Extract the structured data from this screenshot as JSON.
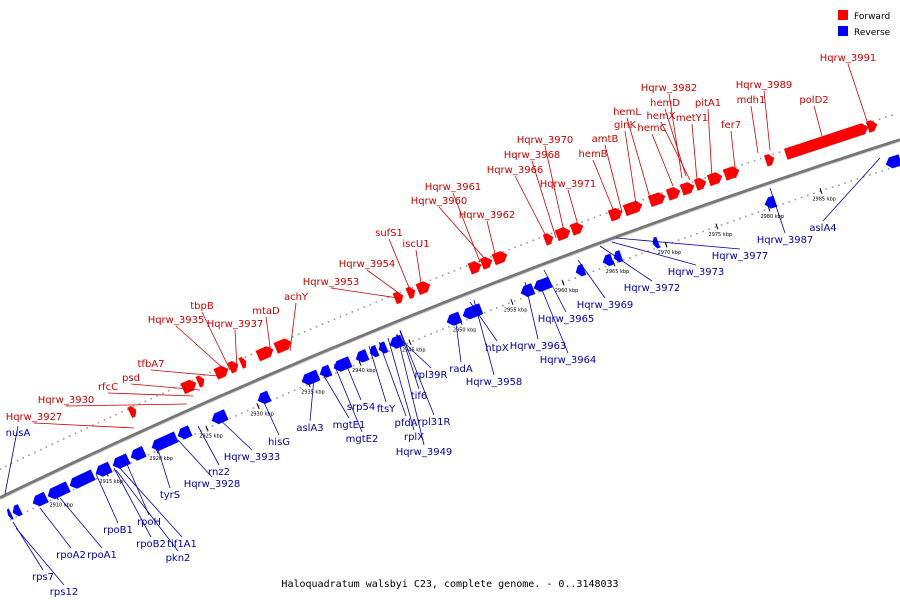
{
  "caption": "Haloquadratum walsbyi C23, complete genome. - 0..3148033",
  "legend": [
    {
      "label": "Forward",
      "color": "#ff0000"
    },
    {
      "label": "Reverse",
      "color": "#0000ff"
    }
  ],
  "colors": {
    "forward": "#ff0000",
    "reverse": "#0000ff",
    "forward_label": "#cc0000",
    "reverse_label": "#0000aa",
    "backbone": "#777777"
  },
  "kbp_ticks": [
    "2910 kbp",
    "2915 kbp",
    "2920 kbp",
    "2925 kbp",
    "2930 kbp",
    "2935 kbp",
    "2940 kbp",
    "2945 kbp",
    "2950 kbp",
    "2955 kbp",
    "2960 kbp",
    "2965 kbp",
    "2970 kbp",
    "2975 kbp",
    "2980 kbp",
    "2985 kbp"
  ],
  "forward_labels": [
    "Hqrw_3991",
    "Hqrw_3989",
    "mdh1",
    "polD2",
    "Hqrw_3982",
    "hemD",
    "hemX",
    "metY1",
    "pitA1",
    "hemL",
    "glnK",
    "hemC",
    "fer7",
    "amtB",
    "hemB",
    "Hqrw_3970",
    "Hqrw_3968",
    "Hqrw_3966",
    "Hqrw_3971",
    "Hqrw_3961",
    "Hqrw_3960",
    "Hqrw_3962",
    "sufS1",
    "iscU1",
    "Hqrw_3954",
    "Hqrw_3953",
    "achY",
    "tbpB",
    "mtaD",
    "Hqrw_3935",
    "Hqrw_3937",
    "tfbA7",
    "psd",
    "rfcC",
    "Hqrw_3930",
    "Hqrw_3927"
  ],
  "reverse_labels": [
    "nusA",
    "rps7",
    "rps12",
    "rpoA2",
    "rpoA1",
    "rpoB1",
    "rpoB2",
    "rpoH",
    "tif1A1",
    "pkn2",
    "tyrS",
    "Hqrw_3928",
    "rnz2",
    "Hqrw_3933",
    "hisG",
    "aslA3",
    "mgtE1",
    "mgtE2",
    "srp54",
    "ftsY",
    "pfdA",
    "rplX",
    "Hqrw_3949",
    "rpl31R",
    "tif6",
    "rpl39R",
    "radA",
    "htpX",
    "Hqrw_3958",
    "Hqrw_3963",
    "Hqrw_3964",
    "Hqrw_3965",
    "Hqrw_3969",
    "Hqrw_3972",
    "Hqrw_3973",
    "Hqrw_3977",
    "Hqrw_3987",
    "aslA4"
  ]
}
